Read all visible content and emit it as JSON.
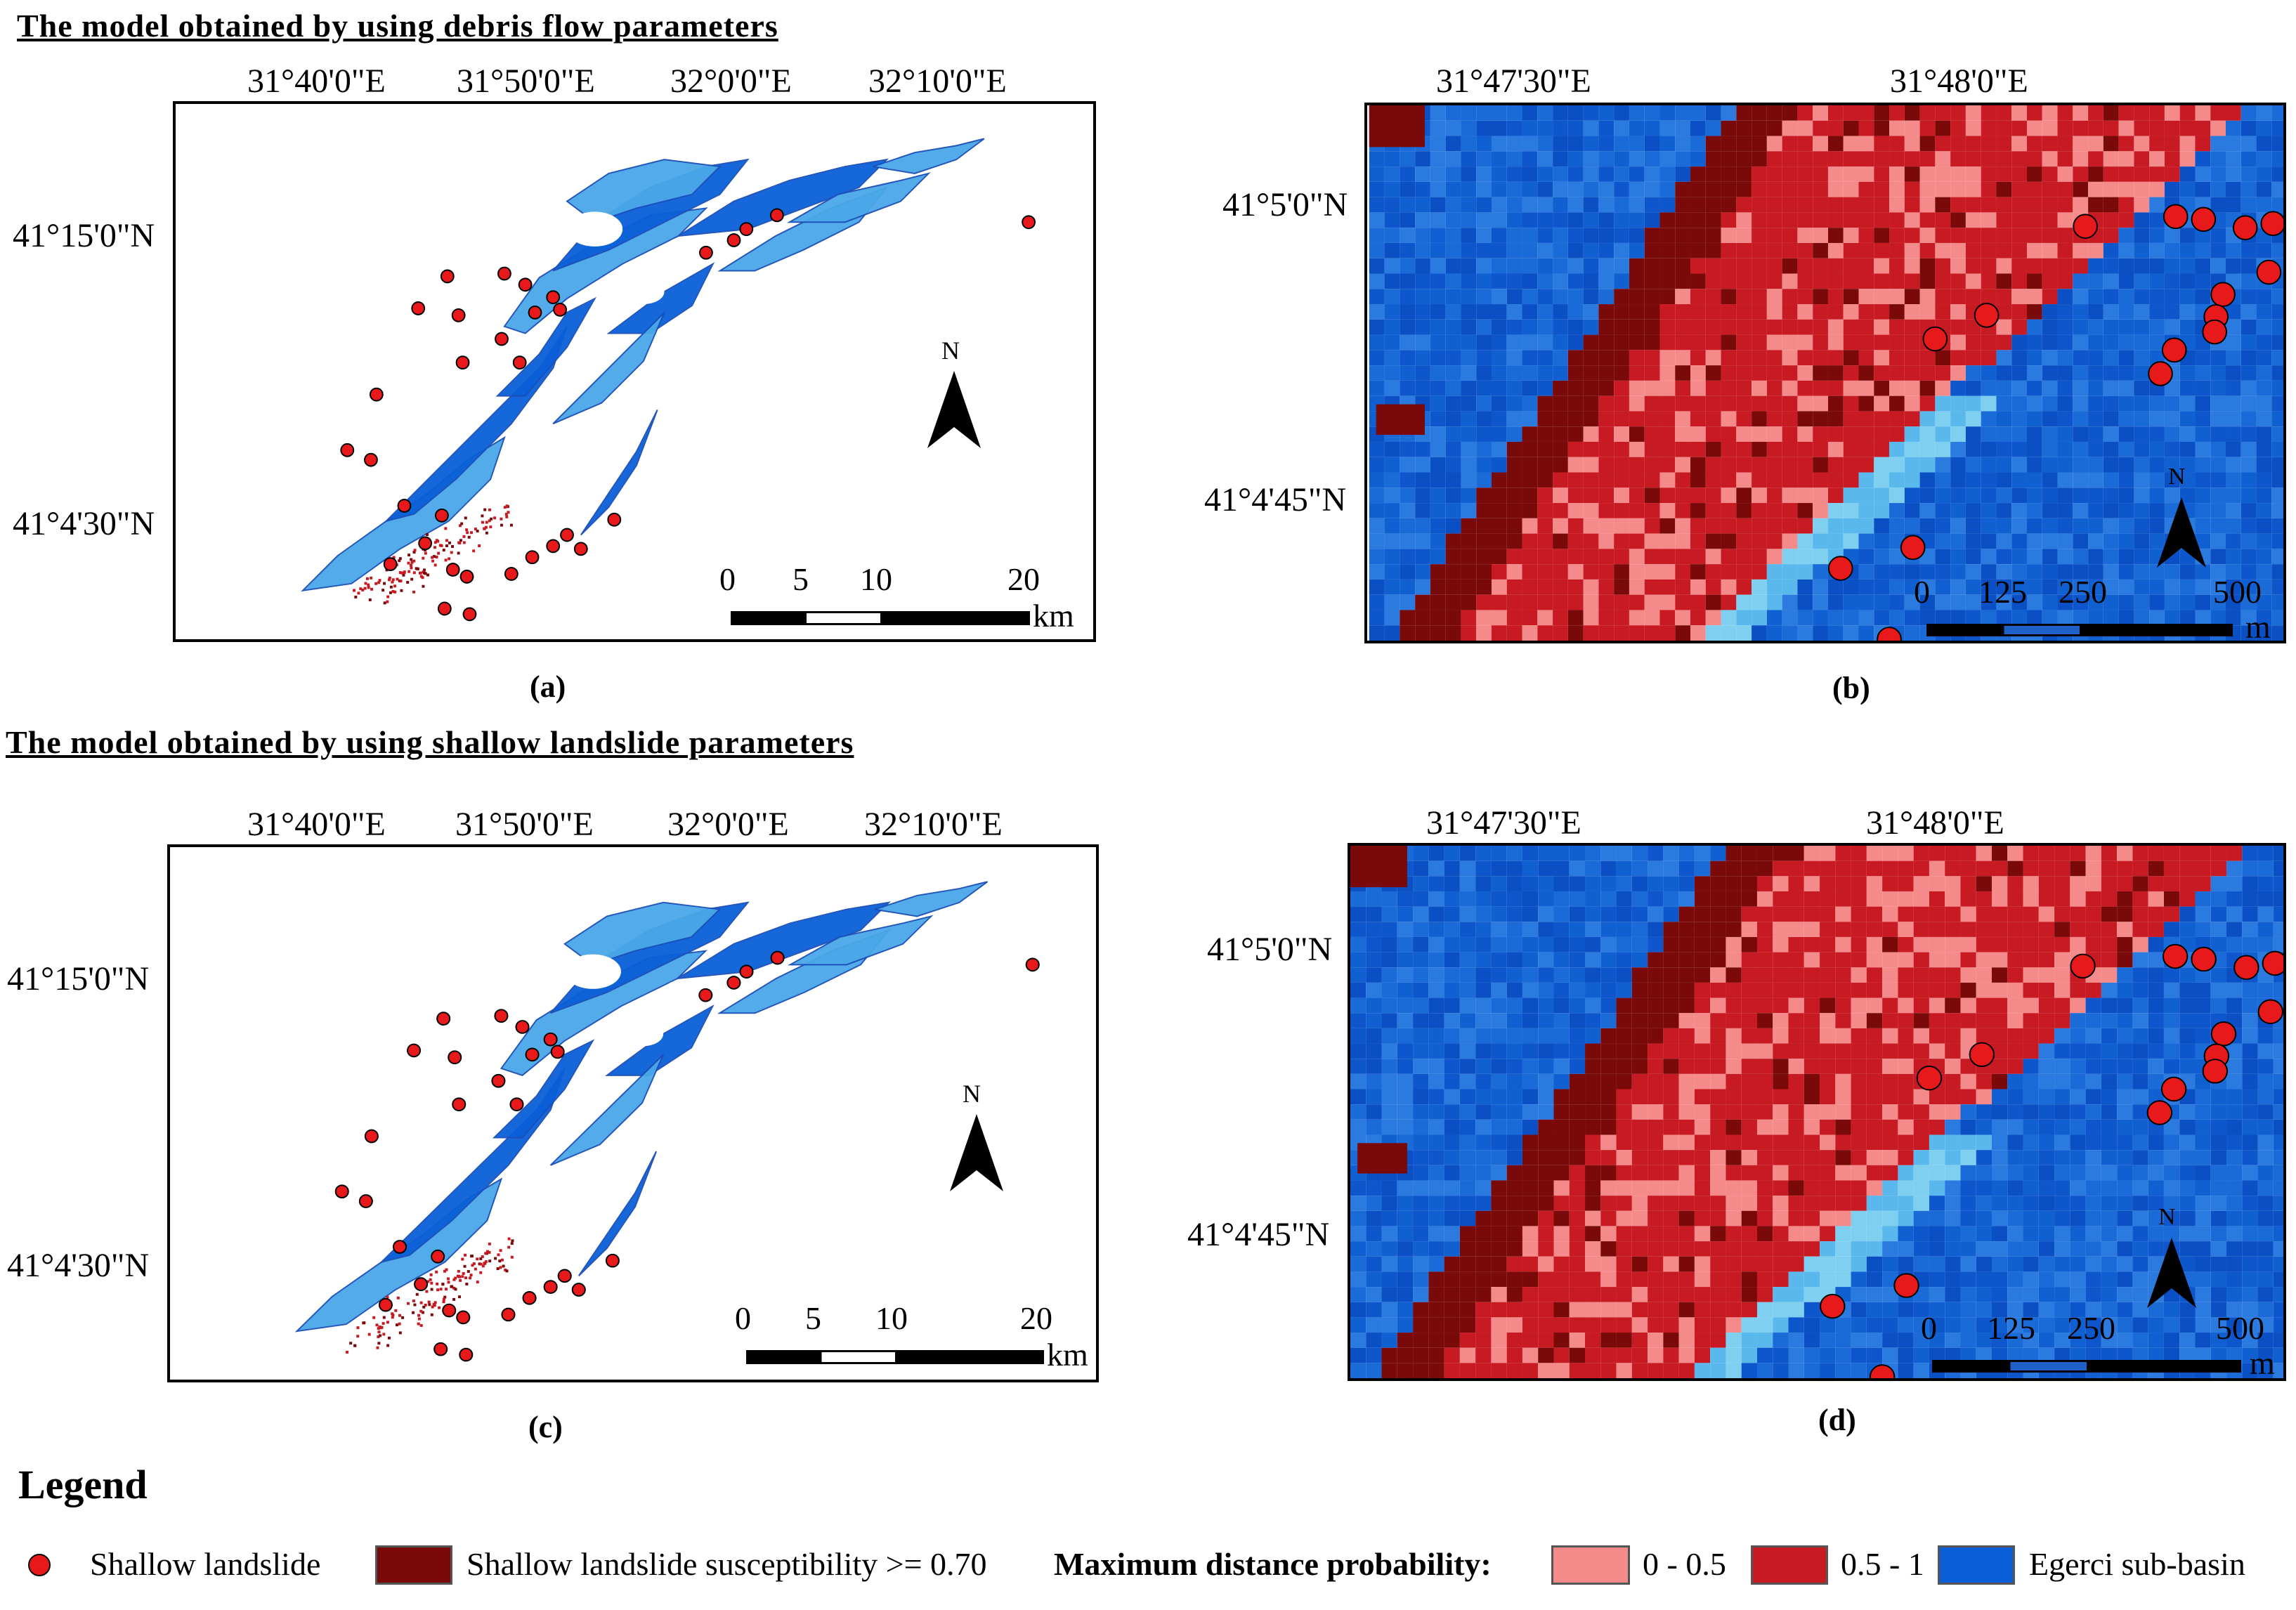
{
  "headings": {
    "top": "The model obtained by using debris flow parameters",
    "bottom": "The model obtained by using shallow landslide parameters"
  },
  "overview": {
    "lon_labels": [
      "31°40'0\"E",
      "31°50'0\"E",
      "32°0'0\"E",
      "32°10'0\"E"
    ],
    "lat_labels": [
      "41°15'0\"N",
      "41°4'30\"N"
    ],
    "north": "N",
    "scale_labels": [
      "0",
      "5",
      "10",
      "20"
    ],
    "scale_unit": "km"
  },
  "detail": {
    "lon_labels": [
      "31°47'30\"E",
      "31°48'0\"E"
    ],
    "lat_labels": [
      "41°5'0\"N",
      "41°4'45\"N"
    ],
    "north": "N",
    "scale_labels": [
      "0",
      "125",
      "250",
      "500"
    ],
    "scale_unit": "m"
  },
  "panel_labels": [
    "(a)",
    "(b)",
    "(c)",
    "(d)"
  ],
  "legend": {
    "title": "Legend",
    "items": {
      "shallow_landslide": "Shallow landslide",
      "susceptibility": "Shallow landslide susceptibility >= 0.70",
      "max_distance_title": "Maximum distance probability:",
      "range_low": "0 - 0.5",
      "range_high": "0.5 - 1",
      "sub_basin": "Egerci sub-basin"
    }
  },
  "colors": {
    "landslide_point": "#e8191a",
    "susceptibility": "#7a0a0a",
    "prob_low": "#f58a8a",
    "prob_high": "#c81a22",
    "sub_basin": "#0a5fd8",
    "sub_basin_light": "#4aa8e8"
  }
}
